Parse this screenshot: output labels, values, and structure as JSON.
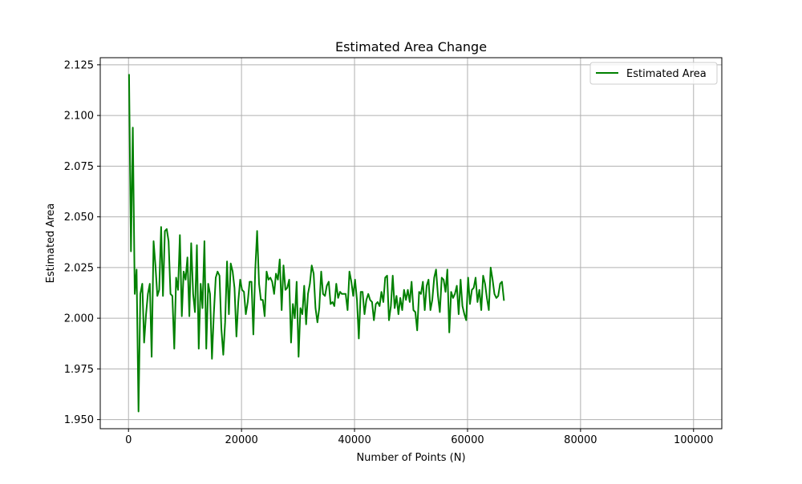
{
  "chart_data": {
    "type": "line",
    "title": "Estimated Area Change",
    "xlabel": "Number of Points (N)",
    "ylabel": "Estimated Area",
    "xlim": [
      -5000,
      105000
    ],
    "ylim": [
      1.9455,
      2.1285
    ],
    "x_ticks": [
      0,
      20000,
      40000,
      60000,
      80000,
      100000
    ],
    "x_tick_labels": [
      "0",
      "20000",
      "40000",
      "60000",
      "80000",
      "100000"
    ],
    "y_ticks": [
      1.95,
      1.975,
      2.0,
      2.025,
      2.05,
      2.075,
      2.1,
      2.125
    ],
    "y_tick_labels": [
      "1.950",
      "1.975",
      "2.000",
      "2.025",
      "2.050",
      "2.075",
      "2.100",
      "2.125"
    ],
    "grid": true,
    "legend_position": "top-right",
    "series": [
      {
        "name": "Estimated Area",
        "color": "#008000",
        "x_start": 100,
        "x_step": 333.33,
        "values": [
          2.12,
          2.033,
          2.094,
          2.012,
          2.024,
          1.954,
          2.012,
          2.017,
          1.988,
          2.002,
          2.012,
          2.017,
          1.981,
          2.038,
          2.026,
          2.011,
          2.014,
          2.045,
          2.011,
          2.043,
          2.044,
          2.038,
          2.012,
          2.011,
          1.985,
          2.02,
          2.014,
          2.041,
          2.001,
          2.023,
          2.019,
          2.03,
          2.001,
          2.037,
          2.012,
          2.003,
          2.036,
          1.985,
          2.017,
          2.005,
          2.038,
          1.985,
          2.017,
          2.012,
          1.98,
          2.002,
          2.02,
          2.023,
          2.021,
          1.995,
          1.982,
          1.998,
          2.028,
          2.002,
          2.027,
          2.023,
          2.015,
          1.991,
          2.008,
          2.019,
          2.014,
          2.013,
          2.002,
          2.008,
          2.018,
          2.018,
          1.992,
          2.024,
          2.043,
          2.017,
          2.009,
          2.009,
          2.001,
          2.023,
          2.019,
          2.02,
          2.018,
          2.012,
          2.022,
          2.019,
          2.029,
          2.004,
          2.026,
          2.014,
          2.015,
          2.019,
          1.988,
          2.007,
          2.0,
          2.018,
          1.981,
          2.005,
          2.002,
          2.016,
          1.997,
          2.012,
          2.017,
          2.026,
          2.022,
          2.005,
          1.998,
          2.005,
          2.023,
          2.012,
          2.011,
          2.016,
          2.018,
          2.007,
          2.008,
          2.006,
          2.017,
          2.01,
          2.013,
          2.012,
          2.012,
          2.012,
          2.004,
          2.023,
          2.018,
          2.011,
          2.019,
          2.009,
          1.99,
          2.013,
          2.013,
          2.002,
          2.009,
          2.012,
          2.009,
          2.008,
          1.999,
          2.007,
          2.008,
          2.006,
          2.013,
          2.008,
          2.02,
          2.021,
          1.999,
          2.006,
          2.021,
          2.005,
          2.011,
          2.002,
          2.01,
          2.004,
          2.014,
          2.009,
          2.014,
          2.008,
          2.018,
          2.004,
          2.003,
          1.994,
          2.013,
          2.012,
          2.018,
          2.004,
          2.016,
          2.019,
          2.004,
          2.009,
          2.02,
          2.024,
          2.011,
          2.003,
          2.02,
          2.019,
          2.013,
          2.024,
          1.993,
          2.013,
          2.01,
          2.012,
          2.016,
          2.002,
          2.019,
          2.006,
          2.002,
          1.999,
          2.02,
          2.007,
          2.014,
          2.015,
          2.02,
          2.008,
          2.014,
          2.004,
          2.021,
          2.017,
          2.01,
          2.004,
          2.025,
          2.019,
          2.012,
          2.01,
          2.011,
          2.017,
          2.018,
          2.009
        ]
      }
    ]
  }
}
